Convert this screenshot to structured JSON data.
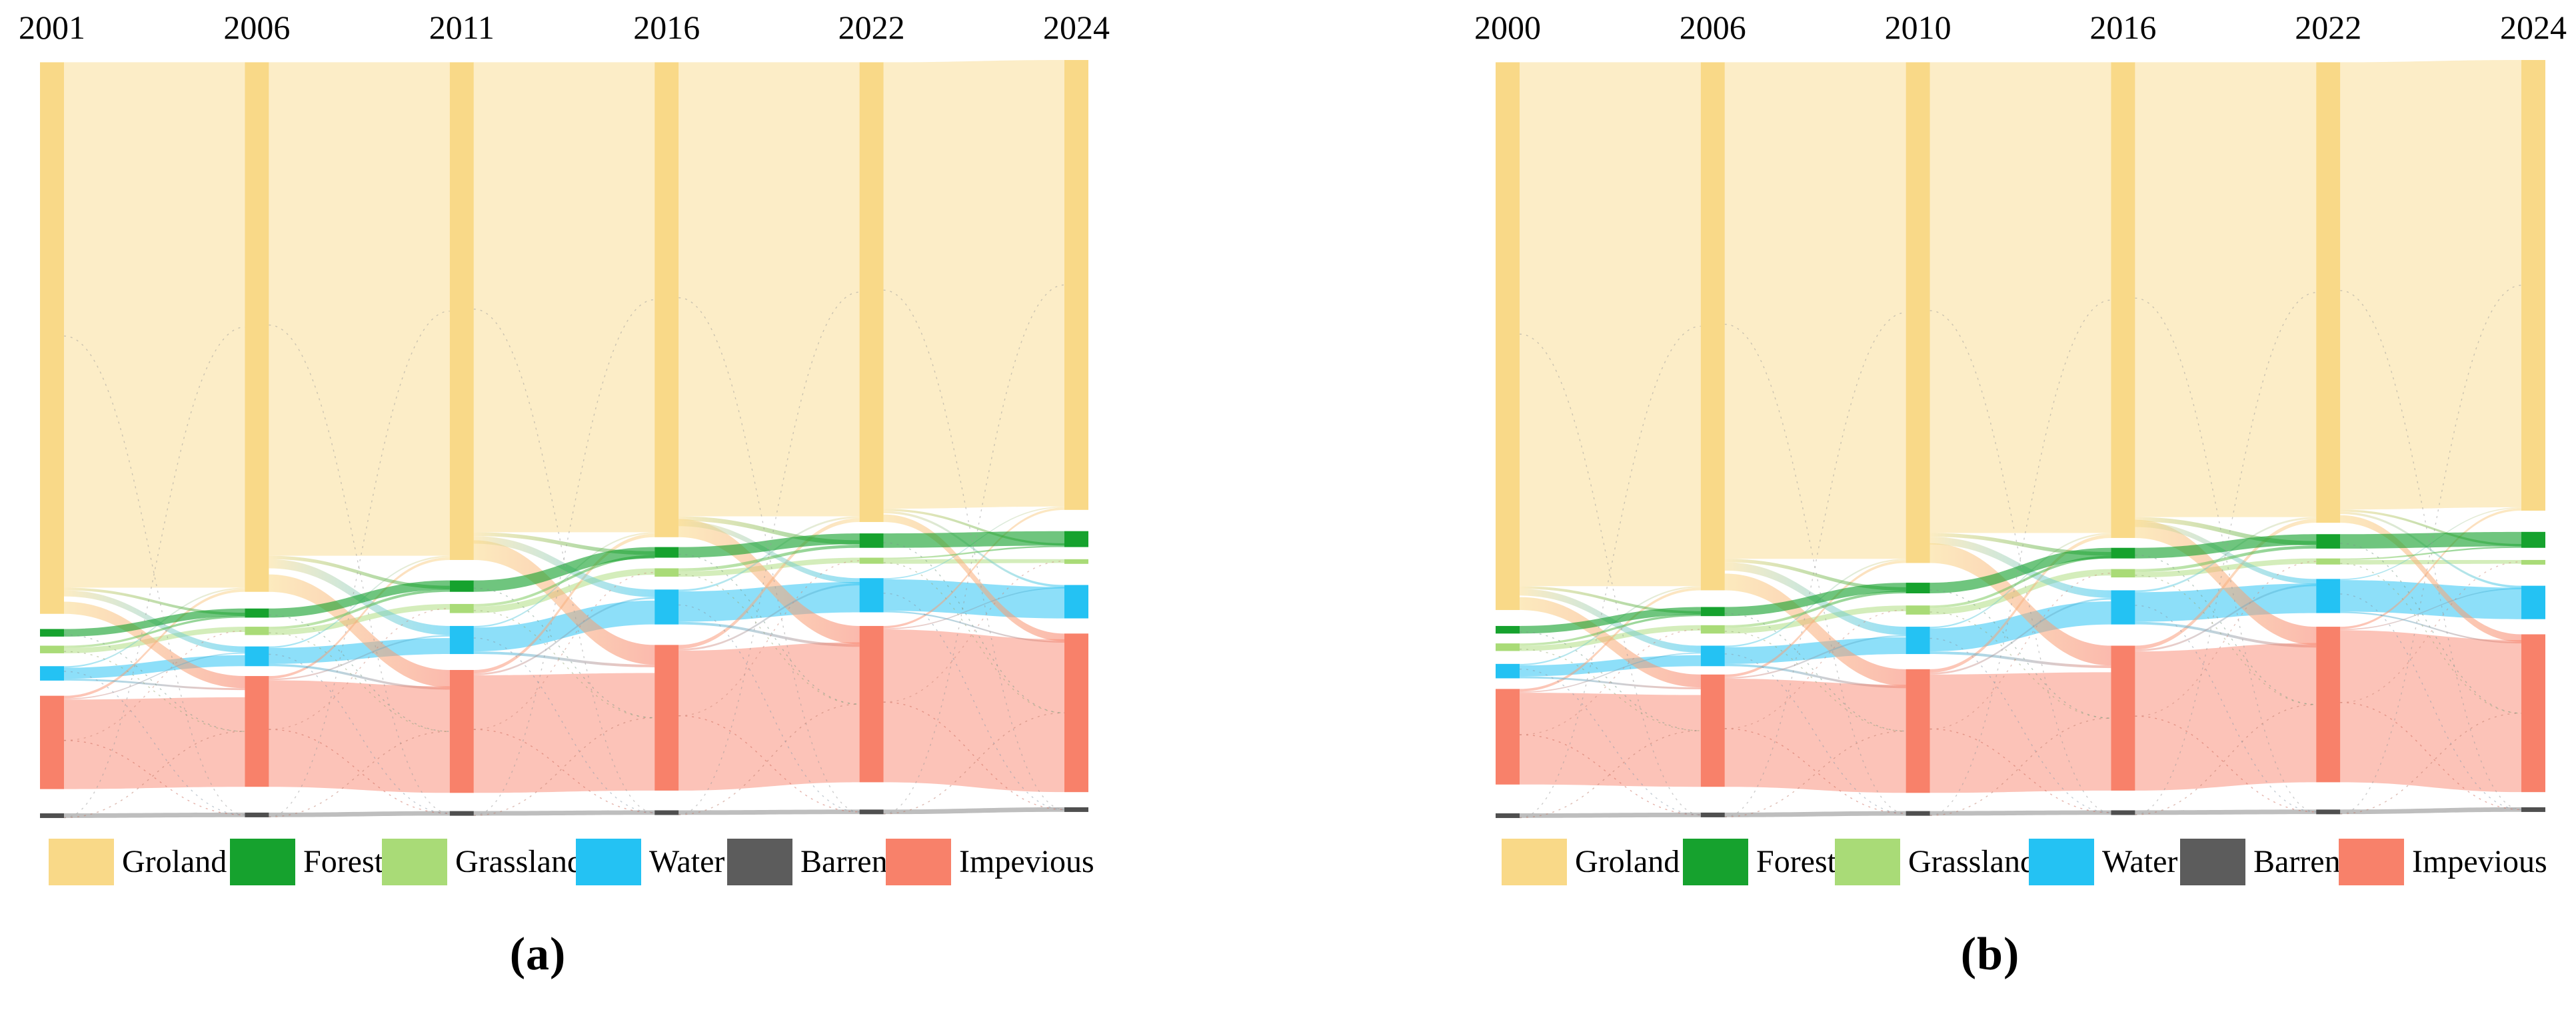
{
  "chart_data": [
    {
      "type": "sankey",
      "panel_label": "(a)",
      "legend_position": "bottom",
      "years": [
        "2001",
        "2006",
        "2011",
        "2016",
        "2022",
        "2024"
      ],
      "categories": [
        {
          "id": "groland",
          "label": "Groland",
          "color": "#F9D988"
        },
        {
          "id": "forest",
          "label": "Forest",
          "color": "#16A22E"
        },
        {
          "id": "grassland",
          "label": "Grassland",
          "color": "#A9DB77"
        },
        {
          "id": "water",
          "label": "Water",
          "color": "#24C2F3"
        },
        {
          "id": "barren",
          "label": "Barren",
          "color": "#5C5C5C"
        },
        {
          "id": "impevious",
          "label": "Impevious",
          "color": "#F8816A"
        }
      ],
      "axis_note": "node positions given as percent of diagram height (visual estimate)",
      "columns": [
        {
          "year": "2001",
          "segments": {
            "groland": {
              "top": 0.3,
              "h": 72.7
            },
            "forest": {
              "top": 75.0,
              "h": 1.0
            },
            "grassland": {
              "top": 77.2,
              "h": 1.0
            },
            "water": {
              "top": 79.9,
              "h": 1.9
            },
            "impevious": {
              "top": 83.8,
              "h": 12.3
            },
            "barren": {
              "top": 99.3,
              "h": 0.6
            }
          }
        },
        {
          "year": "2006",
          "segments": {
            "groland": {
              "top": 0.3,
              "h": 69.8
            },
            "forest": {
              "top": 72.3,
              "h": 1.2
            },
            "grassland": {
              "top": 74.7,
              "h": 1.1
            },
            "water": {
              "top": 77.3,
              "h": 2.6
            },
            "impevious": {
              "top": 81.2,
              "h": 14.6
            },
            "barren": {
              "top": 99.2,
              "h": 0.6
            }
          }
        },
        {
          "year": "2011",
          "segments": {
            "groland": {
              "top": 0.3,
              "h": 65.6
            },
            "forest": {
              "top": 68.6,
              "h": 1.5
            },
            "grassland": {
              "top": 71.7,
              "h": 1.2
            },
            "water": {
              "top": 74.6,
              "h": 3.7
            },
            "impevious": {
              "top": 80.4,
              "h": 16.2
            },
            "barren": {
              "top": 99.0,
              "h": 0.6
            }
          }
        },
        {
          "year": "2016",
          "segments": {
            "groland": {
              "top": 0.3,
              "h": 62.6
            },
            "forest": {
              "top": 64.2,
              "h": 1.4
            },
            "grassland": {
              "top": 67.0,
              "h": 1.1
            },
            "water": {
              "top": 69.8,
              "h": 4.6
            },
            "impevious": {
              "top": 77.1,
              "h": 19.2
            },
            "barren": {
              "top": 98.9,
              "h": 0.6
            }
          }
        },
        {
          "year": "2022",
          "segments": {
            "groland": {
              "top": 0.3,
              "h": 60.6
            },
            "forest": {
              "top": 62.4,
              "h": 1.9
            },
            "grassland": {
              "top": 65.6,
              "h": 0.8
            },
            "water": {
              "top": 68.3,
              "h": 4.5
            },
            "impevious": {
              "top": 74.6,
              "h": 20.6
            },
            "barren": {
              "top": 98.8,
              "h": 0.6
            }
          }
        },
        {
          "year": "2024",
          "segments": {
            "groland": {
              "top": 0.0,
              "h": 59.3
            },
            "forest": {
              "top": 62.1,
              "h": 2.1
            },
            "grassland": {
              "top": 65.8,
              "h": 0.5
            },
            "water": {
              "top": 69.2,
              "h": 4.4
            },
            "impevious": {
              "top": 75.6,
              "h": 20.9
            },
            "barren": {
              "top": 98.5,
              "h": 0.6
            }
          }
        }
      ],
      "transitions": {
        "groland_to_impevious": [
          1.6,
          2.3,
          2.6,
          2.4,
          1.0
        ],
        "groland_to_water": [
          0.8,
          1.2,
          1.0,
          0.7,
          0.3
        ],
        "groland_to_forest": [
          0.35,
          0.45,
          0.5,
          0.6,
          0.3
        ],
        "grassland_to_forest": [
          0.3,
          0.35,
          0.35,
          0.4,
          0.2
        ],
        "impevious_to_groland": [
          0.35,
          0.35,
          0.45,
          0.5,
          0.3
        ],
        "water_to_groland": [
          0.2,
          0.2,
          0.2,
          0.25,
          0.15
        ],
        "water_to_impevious": [
          0.25,
          0.3,
          0.35,
          0.35,
          0.2
        ],
        "impevious_to_water": [
          0.15,
          0.2,
          0.25,
          0.25,
          0.15
        ]
      }
    },
    {
      "type": "sankey",
      "panel_label": "(b)",
      "legend_position": "bottom",
      "years": [
        "2000",
        "2006",
        "2010",
        "2016",
        "2022",
        "2024"
      ],
      "categories": [
        {
          "id": "groland",
          "label": "Groland",
          "color": "#F9D988"
        },
        {
          "id": "forest",
          "label": "Forest",
          "color": "#16A22E"
        },
        {
          "id": "grassland",
          "label": "Grassland",
          "color": "#A9DB77"
        },
        {
          "id": "water",
          "label": "Water",
          "color": "#24C2F3"
        },
        {
          "id": "barren",
          "label": "Barren",
          "color": "#5C5C5C"
        },
        {
          "id": "impevious",
          "label": "Impevious",
          "color": "#F8816A"
        }
      ],
      "axis_note": "node positions given as percent of diagram height (visual estimate)",
      "columns": [
        {
          "year": "2000",
          "segments": {
            "groland": {
              "top": 0.3,
              "h": 72.2
            },
            "forest": {
              "top": 74.6,
              "h": 1.0
            },
            "grassland": {
              "top": 76.9,
              "h": 1.0
            },
            "water": {
              "top": 79.6,
              "h": 1.9
            },
            "impevious": {
              "top": 82.9,
              "h": 12.6
            },
            "barren": {
              "top": 99.3,
              "h": 0.6
            }
          }
        },
        {
          "year": "2006",
          "segments": {
            "groland": {
              "top": 0.3,
              "h": 69.6
            },
            "forest": {
              "top": 72.1,
              "h": 1.2
            },
            "grassland": {
              "top": 74.5,
              "h": 1.1
            },
            "water": {
              "top": 77.2,
              "h": 2.7
            },
            "impevious": {
              "top": 81.0,
              "h": 14.8
            },
            "barren": {
              "top": 99.2,
              "h": 0.6
            }
          }
        },
        {
          "year": "2010",
          "segments": {
            "groland": {
              "top": 0.3,
              "h": 66.0
            },
            "forest": {
              "top": 68.9,
              "h": 1.4
            },
            "grassland": {
              "top": 71.9,
              "h": 1.2
            },
            "water": {
              "top": 74.7,
              "h": 3.6
            },
            "impevious": {
              "top": 80.3,
              "h": 16.3
            },
            "barren": {
              "top": 99.0,
              "h": 0.6
            }
          }
        },
        {
          "year": "2016",
          "segments": {
            "groland": {
              "top": 0.3,
              "h": 62.7
            },
            "forest": {
              "top": 64.3,
              "h": 1.4
            },
            "grassland": {
              "top": 67.1,
              "h": 1.1
            },
            "water": {
              "top": 69.9,
              "h": 4.5
            },
            "impevious": {
              "top": 77.2,
              "h": 19.1
            },
            "barren": {
              "top": 98.9,
              "h": 0.6
            }
          }
        },
        {
          "year": "2022",
          "segments": {
            "groland": {
              "top": 0.3,
              "h": 60.7
            },
            "forest": {
              "top": 62.5,
              "h": 1.9
            },
            "grassland": {
              "top": 65.7,
              "h": 0.8
            },
            "water": {
              "top": 68.4,
              "h": 4.5
            },
            "impevious": {
              "top": 74.7,
              "h": 20.5
            },
            "barren": {
              "top": 98.8,
              "h": 0.6
            }
          }
        },
        {
          "year": "2024",
          "segments": {
            "groland": {
              "top": 0.0,
              "h": 59.4
            },
            "forest": {
              "top": 62.2,
              "h": 2.1
            },
            "grassland": {
              "top": 65.9,
              "h": 0.5
            },
            "water": {
              "top": 69.3,
              "h": 4.4
            },
            "impevious": {
              "top": 75.7,
              "h": 20.8
            },
            "barren": {
              "top": 98.5,
              "h": 0.6
            }
          }
        }
      ],
      "transitions": {
        "groland_to_impevious": [
          1.7,
          2.2,
          2.6,
          2.4,
          1.0
        ],
        "groland_to_water": [
          0.9,
          1.1,
          1.0,
          0.7,
          0.3
        ],
        "groland_to_forest": [
          0.35,
          0.45,
          0.5,
          0.6,
          0.3
        ],
        "grassland_to_forest": [
          0.3,
          0.35,
          0.35,
          0.4,
          0.2
        ],
        "impevious_to_groland": [
          0.35,
          0.35,
          0.45,
          0.5,
          0.3
        ],
        "water_to_groland": [
          0.2,
          0.2,
          0.2,
          0.25,
          0.15
        ],
        "water_to_impevious": [
          0.25,
          0.3,
          0.35,
          0.35,
          0.2
        ],
        "impevious_to_water": [
          0.15,
          0.2,
          0.25,
          0.25,
          0.15
        ]
      }
    }
  ]
}
